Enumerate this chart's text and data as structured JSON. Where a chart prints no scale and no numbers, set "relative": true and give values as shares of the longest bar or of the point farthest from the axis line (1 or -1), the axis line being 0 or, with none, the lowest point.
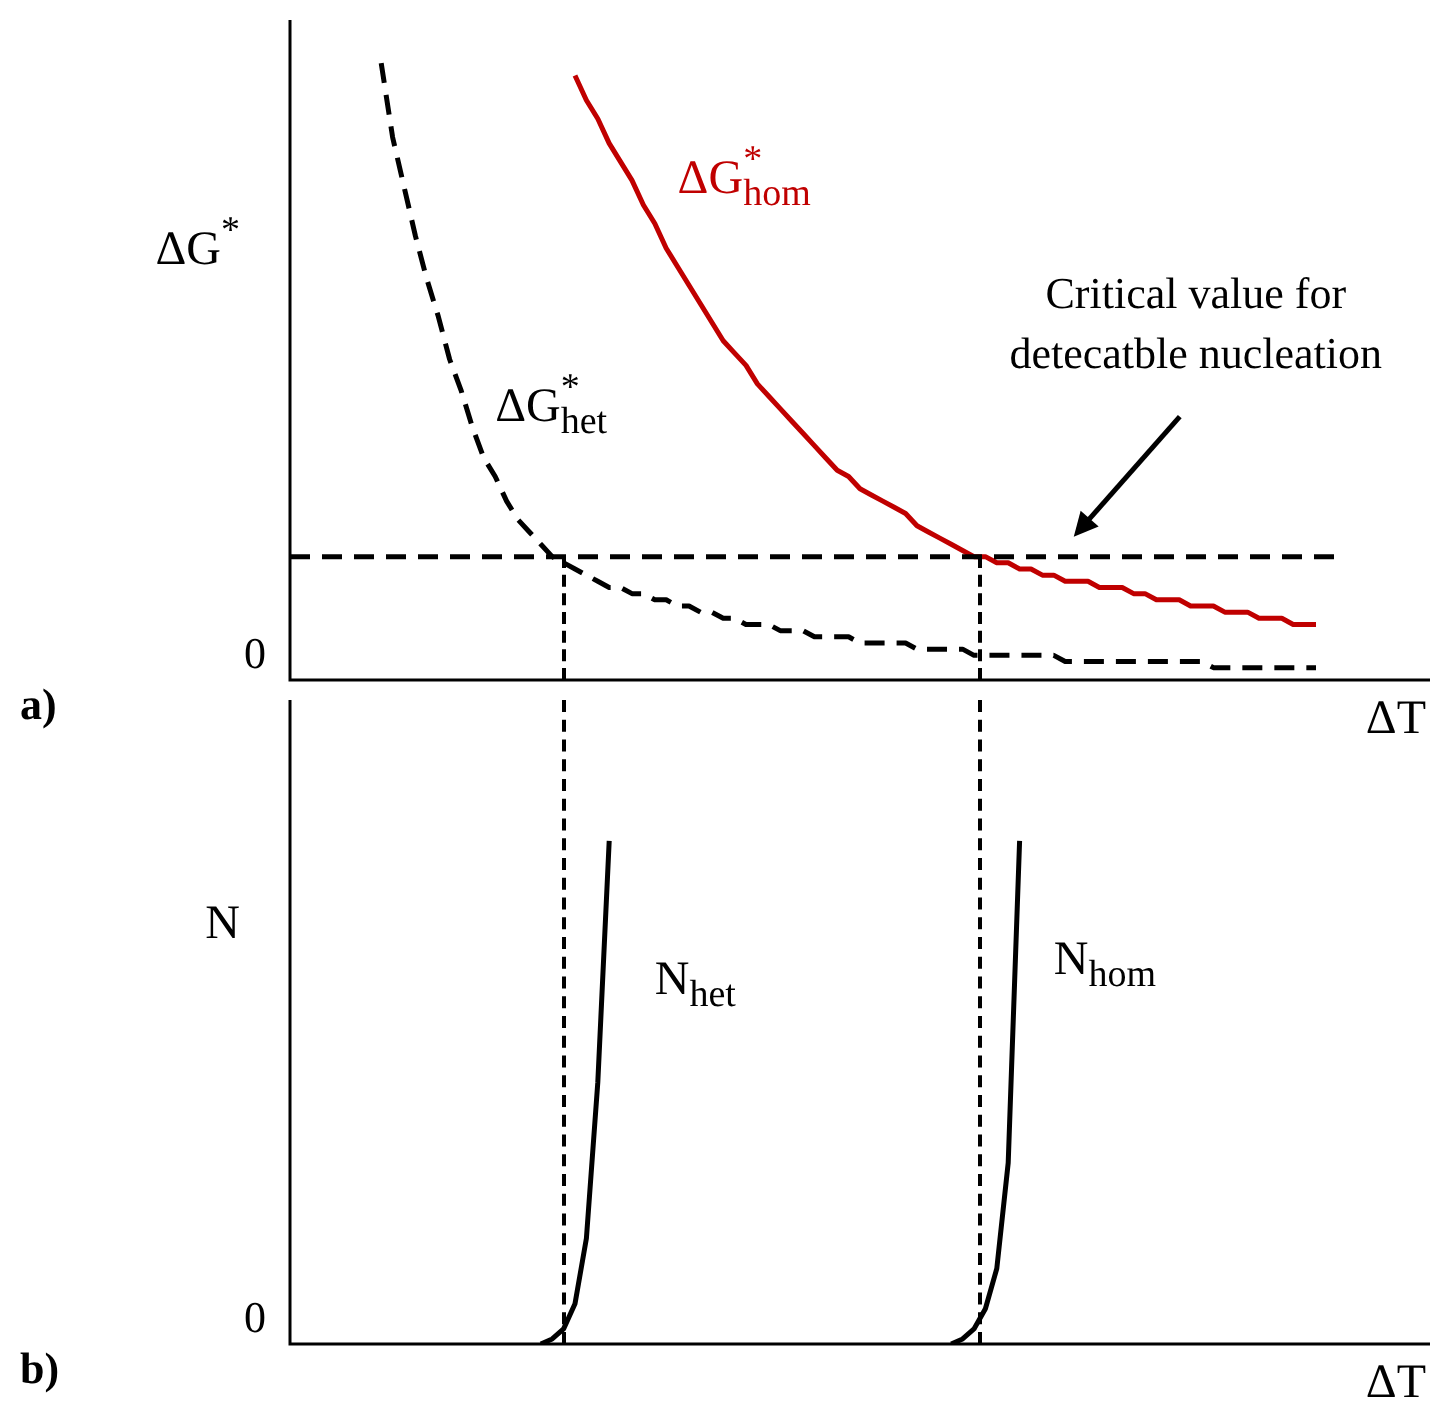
{
  "chart_data": [
    {
      "type": "line",
      "relative": true,
      "ylabel": "ΔG$^{*}$",
      "xlabel": "ΔT",
      "tick_labels": false,
      "grid": false,
      "legend": false,
      "marker": "none",
      "categories": [
        null,
        null,
        null,
        null,
        null,
        null,
        null,
        null,
        null,
        null,
        null,
        null,
        null,
        null,
        null,
        null,
        null,
        null,
        null,
        null,
        null,
        null,
        null,
        null,
        null,
        null,
        null,
        null,
        null,
        null,
        null,
        null,
        null,
        null,
        null,
        null,
        null,
        null,
        null,
        null,
        null,
        null,
        null,
        null,
        null,
        null,
        null,
        null,
        null,
        null,
        null,
        null,
        null,
        null,
        null,
        null,
        null,
        null,
        null,
        null,
        null,
        null,
        null,
        null,
        null,
        null,
        null,
        null,
        null,
        null,
        null,
        null,
        null,
        null,
        null,
        null,
        null,
        null,
        null,
        null,
        null,
        null,
        null,
        null,
        null,
        null,
        null,
        null,
        null,
        null,
        null,
        null,
        null,
        null,
        null,
        null,
        null,
        null,
        null,
        null,
        null
      ],
      "series": [
        {
          "name": "ΔG$^{*}$$_{het}$",
          "color": "#000000",
          "line_style": "dashed",
          "values": [
            null,
            null,
            null,
            null,
            null,
            null,
            null,
            null,
            1,
            0.88,
            0.8,
            0.72,
            0.65,
            0.59,
            0.52,
            0.47,
            0.41,
            0.36,
            0.33,
            0.29,
            0.26,
            0.24,
            0.22,
            0.2,
            0.19,
            0.18,
            0.17,
            0.16,
            0.15,
            0.15,
            0.14,
            0.14,
            0.13,
            0.13,
            0.12,
            0.12,
            0.11,
            0.11,
            0.1,
            0.1,
            0.09,
            0.09,
            0.09,
            0.08,
            0.08,
            0.08,
            0.07,
            0.07,
            0.07,
            0.07,
            0.06,
            0.06,
            0.06,
            0.06,
            0.06,
            0.05,
            0.05,
            0.05,
            0.05,
            0.05,
            0.04,
            0.04,
            0.04,
            0.04,
            0.04,
            0.04,
            0.04,
            0.04,
            0.03,
            0.03,
            0.03,
            0.03,
            0.03,
            0.03,
            0.03,
            0.03,
            0.03,
            0.03,
            0.03,
            0.03,
            0.03,
            0.02,
            0.02,
            0.02,
            0.02,
            0.02,
            0.02,
            0.02,
            0.02,
            0.02,
            0.02,
            null,
            null,
            null,
            null,
            null,
            null,
            null,
            null,
            null,
            null
          ]
        },
        {
          "name": "ΔG$^{*}$$_{hom}$",
          "color": "#c00000",
          "line_style": "solid",
          "values": [
            null,
            null,
            null,
            null,
            null,
            null,
            null,
            null,
            null,
            null,
            null,
            null,
            null,
            null,
            null,
            null,
            null,
            null,
            null,
            null,
            null,
            null,
            null,
            null,
            null,
            0.98,
            0.94,
            0.91,
            0.87,
            0.84,
            0.81,
            0.77,
            0.74,
            0.7,
            0.67,
            0.64,
            0.61,
            0.58,
            0.55,
            0.53,
            0.51,
            0.48,
            0.46,
            0.44,
            0.42,
            0.4,
            0.38,
            0.36,
            0.34,
            0.33,
            0.31,
            0.3,
            0.29,
            0.28,
            0.27,
            0.25,
            0.24,
            0.23,
            0.22,
            0.21,
            0.2,
            0.2,
            0.19,
            0.19,
            0.18,
            0.18,
            0.17,
            0.17,
            0.16,
            0.16,
            0.16,
            0.15,
            0.15,
            0.15,
            0.14,
            0.14,
            0.13,
            0.13,
            0.13,
            0.12,
            0.12,
            0.12,
            0.11,
            0.11,
            0.11,
            0.1,
            0.1,
            0.1,
            0.09,
            0.09,
            0.09,
            null,
            null,
            null,
            null,
            null,
            null,
            null,
            null,
            null,
            null
          ]
        }
      ],
      "ref_lines": [
        {
          "axis": "y",
          "value": 0.2,
          "color": "#000000",
          "line_style": "dashed"
        }
      ],
      "annotations": [
        "Critical value for detecatble nucleation",
        "0",
        "a)"
      ]
    },
    {
      "type": "line",
      "relative": true,
      "ylabel": "N",
      "xlabel": "ΔT",
      "tick_labels": false,
      "grid": false,
      "legend": false,
      "marker": "none",
      "categories": [
        null,
        null,
        null,
        null,
        null,
        null,
        null,
        null,
        null,
        null,
        null,
        null,
        null,
        null,
        null,
        null,
        null,
        null,
        null,
        null,
        null,
        null,
        null,
        null,
        null,
        null,
        null,
        null,
        null,
        null,
        null,
        null,
        null,
        null,
        null,
        null,
        null,
        null,
        null,
        null,
        null,
        null,
        null,
        null,
        null,
        null,
        null,
        null,
        null,
        null,
        null,
        null,
        null,
        null,
        null,
        null,
        null,
        null,
        null,
        null,
        null,
        null,
        null,
        null,
        null,
        null,
        null,
        null,
        null,
        null,
        null,
        null,
        null,
        null,
        null,
        null,
        null,
        null,
        null,
        null,
        null,
        null,
        null,
        null,
        null,
        null,
        null,
        null,
        null,
        null,
        null,
        null,
        null,
        null,
        null,
        null,
        null,
        null,
        null,
        null,
        null
      ],
      "series": [
        {
          "name": "N$_{het}$",
          "color": "#000000",
          "line_style": "solid",
          "values": [
            null,
            null,
            null,
            null,
            null,
            null,
            null,
            null,
            null,
            null,
            null,
            null,
            null,
            null,
            null,
            null,
            null,
            null,
            null,
            null,
            null,
            null,
            0,
            0.01,
            0.03,
            0.08,
            0.21,
            0.52,
            1,
            null,
            null,
            null,
            null,
            null,
            null,
            null,
            null,
            null,
            null,
            null,
            null,
            null,
            null,
            null,
            null,
            null,
            null,
            null,
            null,
            null,
            null,
            null,
            null,
            null,
            null,
            null,
            null,
            null,
            null,
            null,
            null,
            null,
            null,
            null,
            null,
            null,
            null,
            null,
            null,
            null,
            null,
            null,
            null,
            null,
            null,
            null,
            null,
            null,
            null,
            null,
            null,
            null,
            null,
            null,
            null,
            null,
            null,
            null,
            null,
            null,
            null,
            null,
            null,
            null,
            null,
            null,
            null,
            null,
            null,
            null,
            null
          ]
        },
        {
          "name": "N$_{hom}$",
          "color": "#000000",
          "line_style": "solid",
          "values": [
            null,
            null,
            null,
            null,
            null,
            null,
            null,
            null,
            null,
            null,
            null,
            null,
            null,
            null,
            null,
            null,
            null,
            null,
            null,
            null,
            null,
            null,
            null,
            null,
            null,
            null,
            null,
            null,
            null,
            null,
            null,
            null,
            null,
            null,
            null,
            null,
            null,
            null,
            null,
            null,
            null,
            null,
            null,
            null,
            null,
            null,
            null,
            null,
            null,
            null,
            null,
            null,
            null,
            null,
            null,
            null,
            null,
            null,
            0,
            0.01,
            0.03,
            0.07,
            0.15,
            0.36,
            1,
            null,
            null,
            null,
            null,
            null,
            null,
            null,
            null,
            null,
            null,
            null,
            null,
            null,
            null,
            null,
            null,
            null,
            null,
            null,
            null,
            null,
            null,
            null,
            null,
            null,
            null,
            null,
            null,
            null,
            null,
            null,
            null,
            null,
            null,
            null,
            null
          ]
        }
      ],
      "annotations": [
        "0",
        "b)"
      ]
    }
  ]
}
